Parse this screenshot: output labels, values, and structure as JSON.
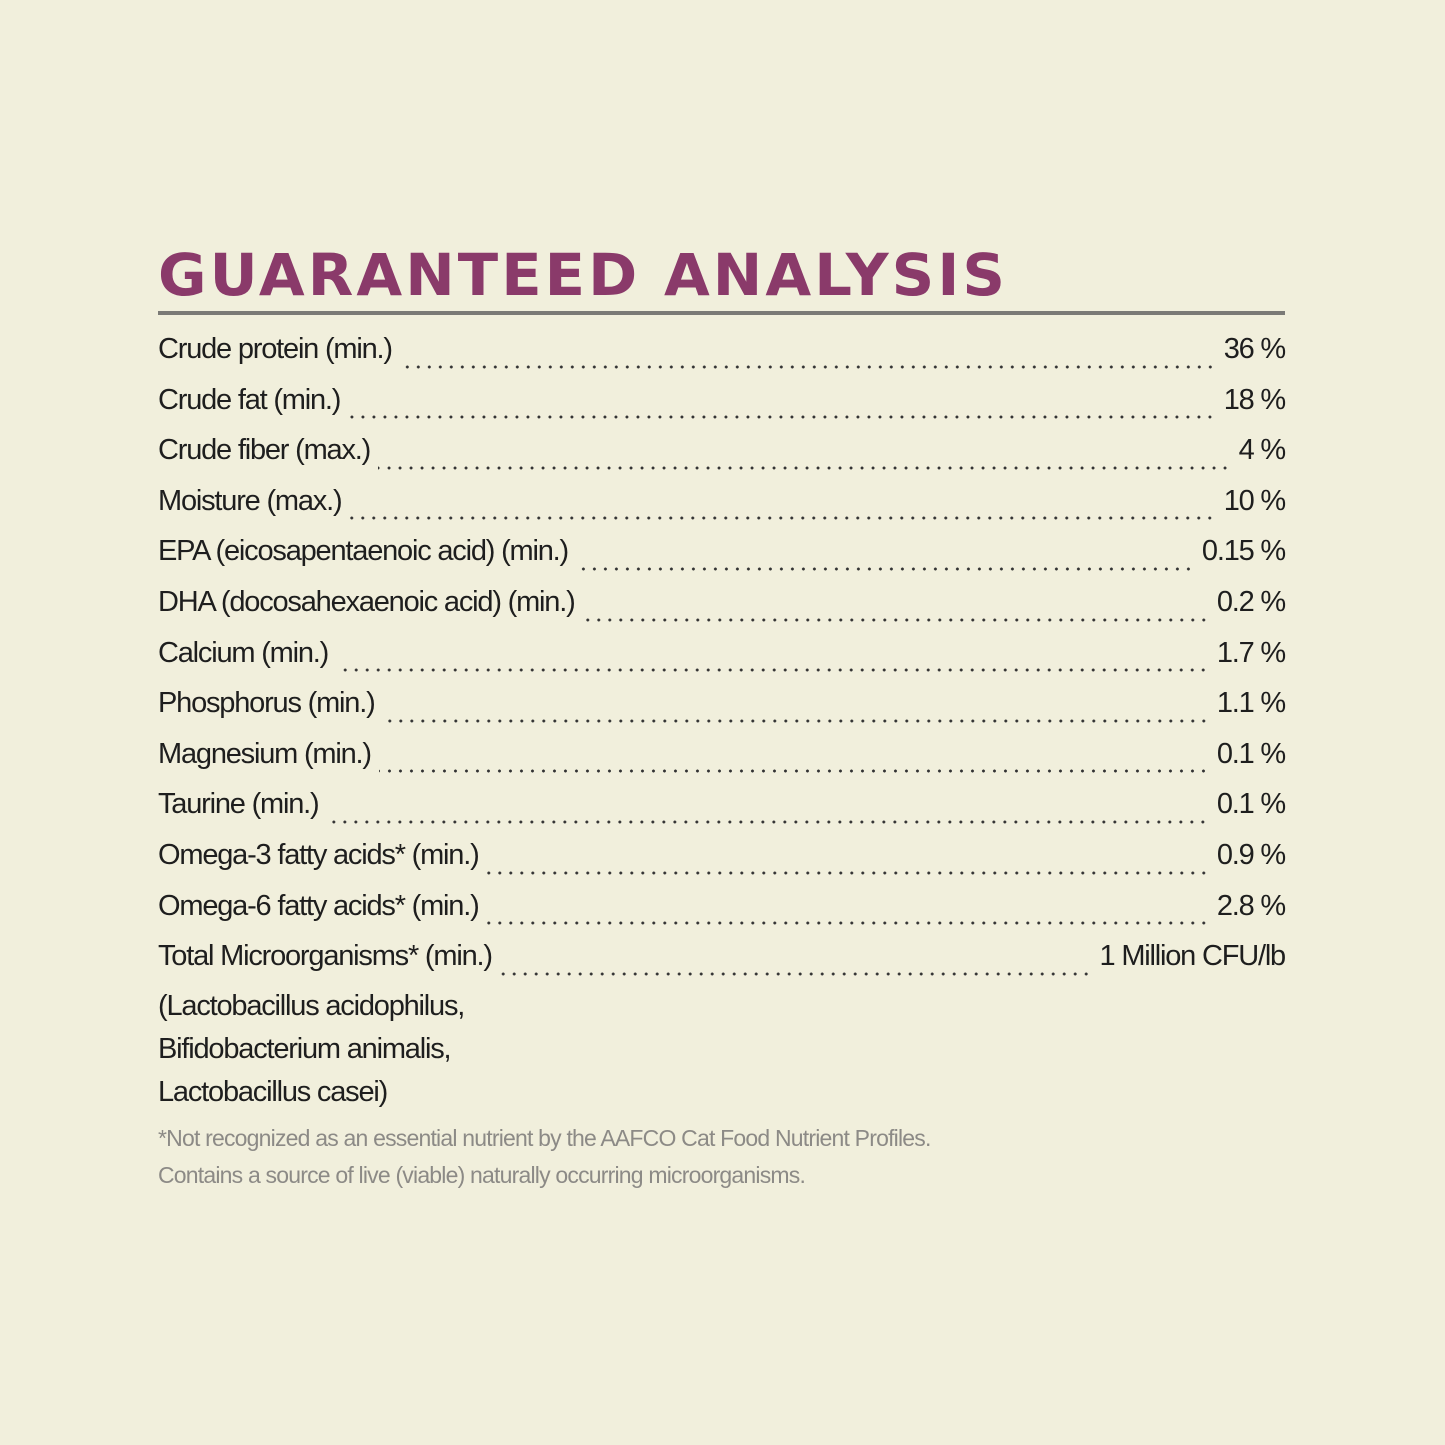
{
  "title": "GUARANTEED ANALYSIS",
  "colors": {
    "background": "#f1efdc",
    "title": "#8a3a6a",
    "rule": "#7b7a76",
    "footnote": "#8c8a86"
  },
  "rows": [
    {
      "label": "Crude protein (min.)",
      "value": "36 %"
    },
    {
      "label": "Crude fat (min.)",
      "value": "18 %"
    },
    {
      "label": "Crude fiber (max.)",
      "value": "4 %"
    },
    {
      "label": "Moisture (max.)",
      "value": "10 %"
    },
    {
      "label": "EPA (eicosapentaenoic acid) (min.)",
      "value": "0.15 %"
    },
    {
      "label": "DHA (docosahexaenoic acid) (min.)",
      "value": "0.2 %"
    },
    {
      "label": "Calcium (min.)",
      "value": "1.7 %"
    },
    {
      "label": "Phosphorus (min.)",
      "value": "1.1 %"
    },
    {
      "label": "Magnesium (min.)",
      "value": "0.1 %"
    },
    {
      "label": "Taurine (min.)",
      "value": "0.1 %"
    },
    {
      "label": "Omega-3 fatty acids* (min.)",
      "value": "0.9 %"
    },
    {
      "label": "Omega-6 fatty acids* (min.)",
      "value": "2.8 %"
    },
    {
      "label": "Total Microorganisms* (min.)",
      "value": "1 Million CFU/lb"
    }
  ],
  "microorganisms": [
    "(Lactobacillus acidophilus,",
    "Bifidobacterium animalis,",
    "Lactobacillus casei)"
  ],
  "footnotes": [
    "*Not recognized as an essential nutrient by the AAFCO Cat Food Nutrient Profiles.",
    "Contains a source of live (viable) naturally occurring microorganisms."
  ]
}
